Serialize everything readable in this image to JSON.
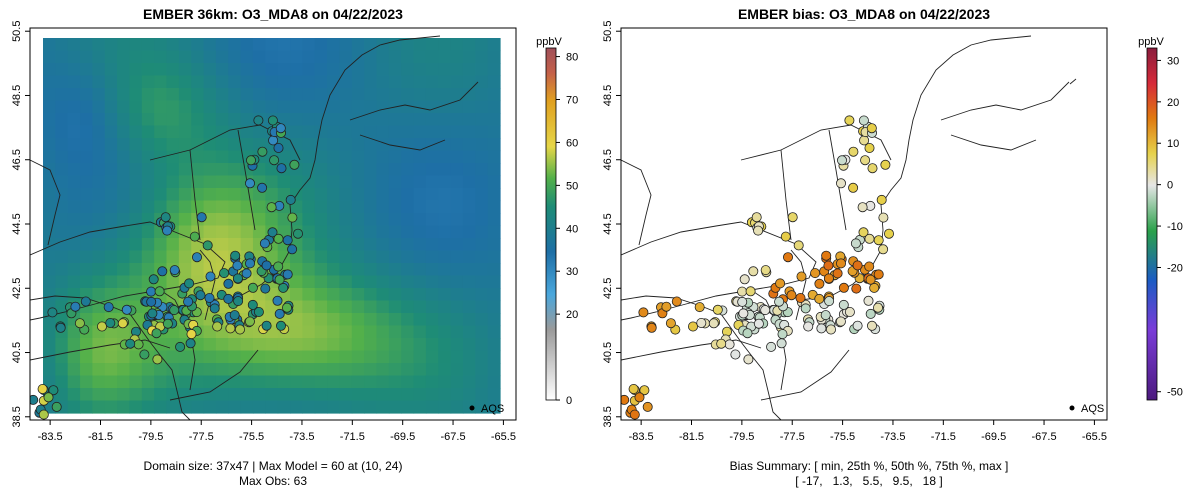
{
  "chart_data": [
    {
      "type": "heatmap",
      "title": "EMBER 36km: O3_MDA8 on 04/22/2023",
      "x_ticks": [
        "-83.5",
        "-81.5",
        "-79.5",
        "-77.5",
        "-75.5",
        "-73.5",
        "-71.5",
        "-69.5",
        "-67.5",
        "-65.5"
      ],
      "y_ticks": [
        "38.5",
        "40.5",
        "42.5",
        "44.5",
        "46.5",
        "48.5",
        "50.5"
      ],
      "xlim": [
        -84.3,
        -65.0
      ],
      "ylim": [
        38.4,
        50.6
      ],
      "colorbar": {
        "label": "ppbV",
        "ticks": [
          "0",
          "20",
          "30",
          "40",
          "50",
          "60",
          "70",
          "80"
        ],
        "range": [
          0,
          82
        ]
      },
      "legend": "AQS",
      "caption_line1": "Domain size: 37x47 | Max Model = 60 at (10, 24)",
      "caption_line2": "Max Obs: 63"
    },
    {
      "type": "scatter",
      "title": "EMBER bias: O3_MDA8 on 04/22/2023",
      "x_ticks": [
        "-83.5",
        "-81.5",
        "-79.5",
        "-77.5",
        "-75.5",
        "-73.5",
        "-71.5",
        "-69.5",
        "-67.5",
        "-65.5"
      ],
      "y_ticks": [
        "38.5",
        "40.5",
        "42.5",
        "44.5",
        "46.5",
        "48.5",
        "50.5"
      ],
      "xlim": [
        -84.3,
        -65.0
      ],
      "ylim": [
        38.4,
        50.6
      ],
      "colorbar": {
        "label": "ppbV",
        "ticks": [
          "-50",
          "-20",
          "-10",
          "0",
          "10",
          "20",
          "30"
        ],
        "range": [
          -52,
          33
        ]
      },
      "legend": "AQS",
      "caption_line1": "Bias Summary: [ min, 25th %, 50th %, 75th %, max ]",
      "caption_line2": "[ -17,   1.3,   5.5,   9.5,   18 ]"
    }
  ]
}
